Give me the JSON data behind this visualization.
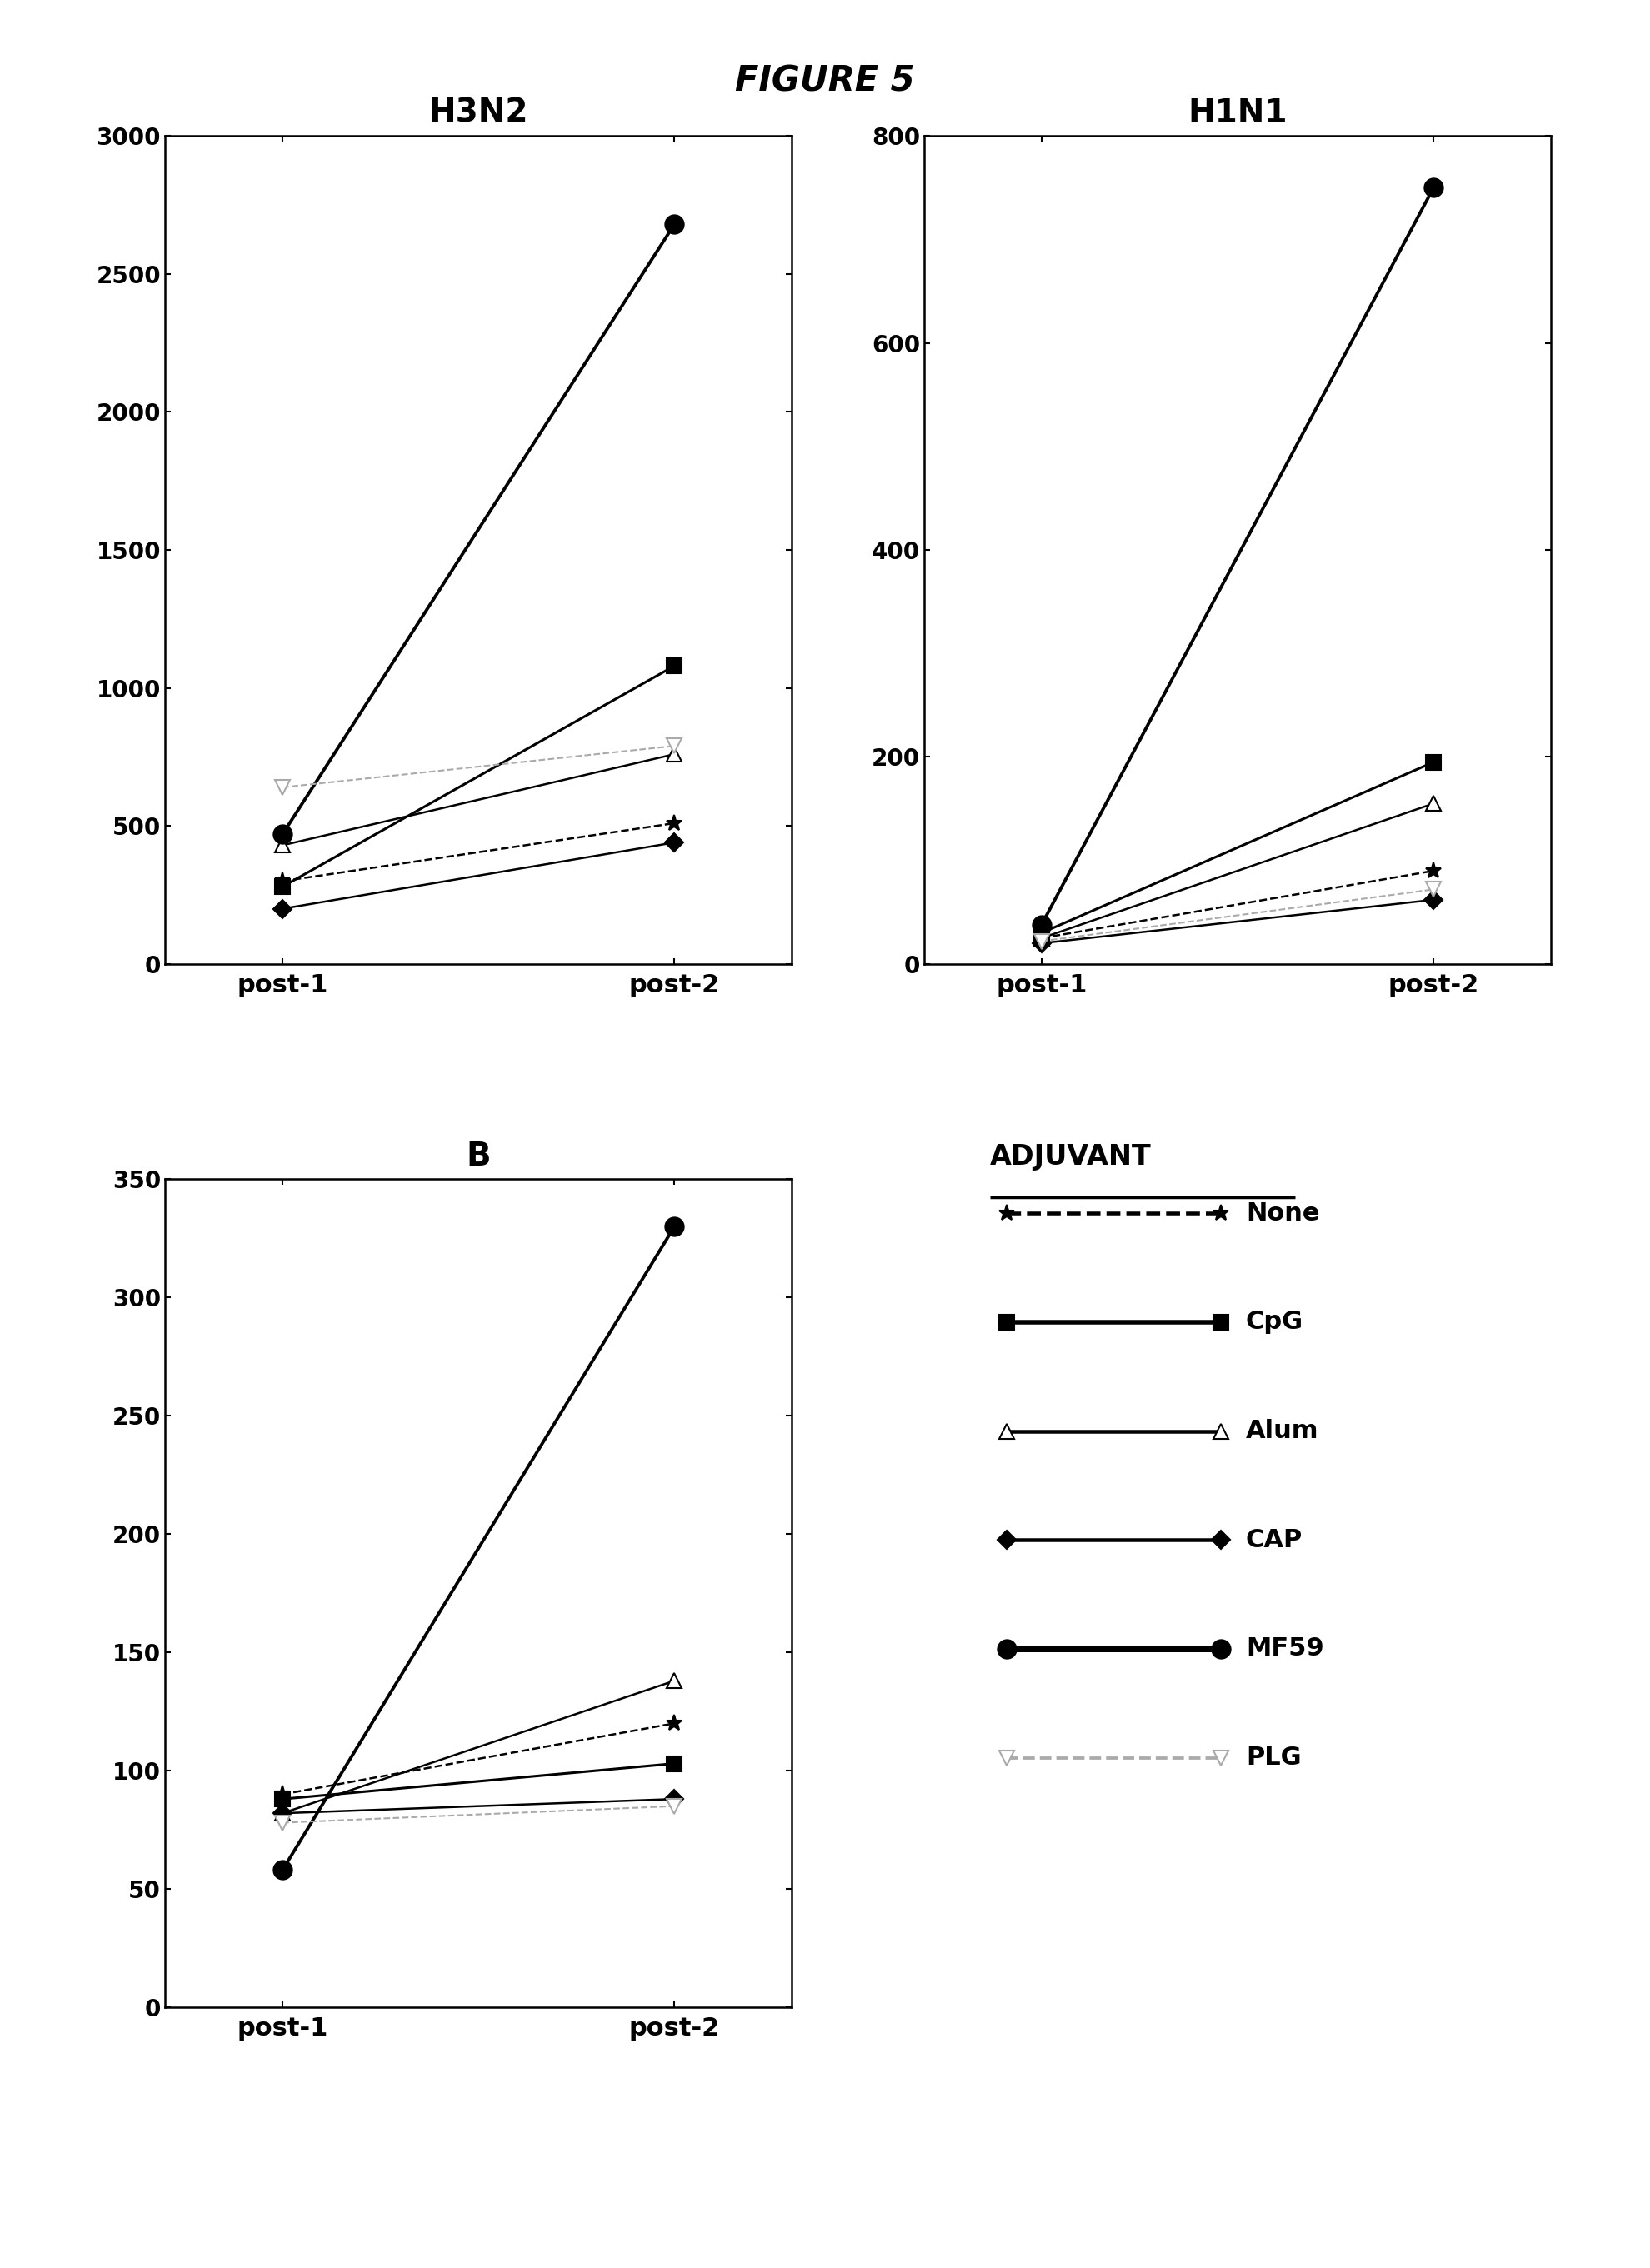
{
  "figure_title": "FIGURE 5",
  "plots": [
    {
      "title": "H3N2",
      "x_labels": [
        "post-1",
        "post-2"
      ],
      "ylim": [
        0,
        3000
      ],
      "yticks": [
        0,
        500,
        1000,
        1500,
        2000,
        2500,
        3000
      ],
      "series": [
        {
          "label": "None",
          "values": [
            300,
            510
          ],
          "color": "#000000",
          "linestyle": "--",
          "marker": "*",
          "linewidth": 1.8,
          "markersize": 14,
          "mfc": "#000000",
          "mec": "#000000"
        },
        {
          "label": "CpG",
          "values": [
            280,
            1080
          ],
          "color": "#000000",
          "linestyle": "-",
          "marker": "s",
          "linewidth": 2.2,
          "markersize": 13,
          "mfc": "#000000",
          "mec": "#000000"
        },
        {
          "label": "Alum",
          "values": [
            430,
            760
          ],
          "color": "#000000",
          "linestyle": "-",
          "marker": "^",
          "linewidth": 1.8,
          "markersize": 13,
          "mfc": "#ffffff",
          "mec": "#000000"
        },
        {
          "label": "CAP",
          "values": [
            200,
            440
          ],
          "color": "#000000",
          "linestyle": "-",
          "marker": "D",
          "linewidth": 1.8,
          "markersize": 11,
          "mfc": "#000000",
          "mec": "#000000"
        },
        {
          "label": "MF59",
          "values": [
            470,
            2680
          ],
          "color": "#000000",
          "linestyle": "-",
          "marker": "o",
          "linewidth": 2.8,
          "markersize": 16,
          "mfc": "#000000",
          "mec": "#000000"
        },
        {
          "label": "PLG",
          "values": [
            640,
            790
          ],
          "color": "#aaaaaa",
          "linestyle": "--",
          "marker": "v",
          "linewidth": 1.5,
          "markersize": 13,
          "mfc": "#ffffff",
          "mec": "#aaaaaa"
        }
      ]
    },
    {
      "title": "H1N1",
      "x_labels": [
        "post-1",
        "post-2"
      ],
      "ylim": [
        0,
        800
      ],
      "yticks": [
        0,
        200,
        400,
        600,
        800
      ],
      "series": [
        {
          "label": "None",
          "values": [
            25,
            90
          ],
          "color": "#000000",
          "linestyle": "--",
          "marker": "*",
          "linewidth": 1.8,
          "markersize": 14,
          "mfc": "#000000",
          "mec": "#000000"
        },
        {
          "label": "CpG",
          "values": [
            30,
            195
          ],
          "color": "#000000",
          "linestyle": "-",
          "marker": "s",
          "linewidth": 2.2,
          "markersize": 13,
          "mfc": "#000000",
          "mec": "#000000"
        },
        {
          "label": "Alum",
          "values": [
            25,
            155
          ],
          "color": "#000000",
          "linestyle": "-",
          "marker": "^",
          "linewidth": 1.8,
          "markersize": 13,
          "mfc": "#ffffff",
          "mec": "#000000"
        },
        {
          "label": "CAP",
          "values": [
            20,
            62
          ],
          "color": "#000000",
          "linestyle": "-",
          "marker": "D",
          "linewidth": 1.8,
          "markersize": 11,
          "mfc": "#000000",
          "mec": "#000000"
        },
        {
          "label": "MF59",
          "values": [
            38,
            750
          ],
          "color": "#000000",
          "linestyle": "-",
          "marker": "o",
          "linewidth": 2.8,
          "markersize": 16,
          "mfc": "#000000",
          "mec": "#000000"
        },
        {
          "label": "PLG",
          "values": [
            22,
            72
          ],
          "color": "#aaaaaa",
          "linestyle": "--",
          "marker": "v",
          "linewidth": 1.5,
          "markersize": 13,
          "mfc": "#ffffff",
          "mec": "#aaaaaa"
        }
      ]
    },
    {
      "title": "B",
      "x_labels": [
        "post-1",
        "post-2"
      ],
      "ylim": [
        0,
        350
      ],
      "yticks": [
        0,
        50,
        100,
        150,
        200,
        250,
        300,
        350
      ],
      "series": [
        {
          "label": "None",
          "values": [
            90,
            120
          ],
          "color": "#000000",
          "linestyle": "--",
          "marker": "*",
          "linewidth": 1.8,
          "markersize": 14,
          "mfc": "#000000",
          "mec": "#000000"
        },
        {
          "label": "CpG",
          "values": [
            88,
            103
          ],
          "color": "#000000",
          "linestyle": "-",
          "marker": "s",
          "linewidth": 2.2,
          "markersize": 13,
          "mfc": "#000000",
          "mec": "#000000"
        },
        {
          "label": "Alum",
          "values": [
            82,
            138
          ],
          "color": "#000000",
          "linestyle": "-",
          "marker": "^",
          "linewidth": 1.8,
          "markersize": 13,
          "mfc": "#ffffff",
          "mec": "#000000"
        },
        {
          "label": "CAP",
          "values": [
            82,
            88
          ],
          "color": "#000000",
          "linestyle": "-",
          "marker": "D",
          "linewidth": 1.8,
          "markersize": 11,
          "mfc": "#000000",
          "mec": "#000000"
        },
        {
          "label": "MF59",
          "values": [
            58,
            330
          ],
          "color": "#000000",
          "linestyle": "-",
          "marker": "o",
          "linewidth": 2.8,
          "markersize": 16,
          "mfc": "#000000",
          "mec": "#000000"
        },
        {
          "label": "PLG",
          "values": [
            78,
            85
          ],
          "color": "#aaaaaa",
          "linestyle": "--",
          "marker": "v",
          "linewidth": 1.5,
          "markersize": 13,
          "mfc": "#ffffff",
          "mec": "#aaaaaa"
        }
      ]
    }
  ],
  "legend_title": "ADJUVANT",
  "legend_entries": [
    {
      "label": "None",
      "color": "#000000",
      "linestyle": "--",
      "marker": "*",
      "linewidth": 1.8,
      "markersize": 14,
      "mfc": "#000000",
      "mec": "#000000"
    },
    {
      "label": "CpG",
      "color": "#000000",
      "linestyle": "-",
      "marker": "s",
      "linewidth": 2.2,
      "markersize": 13,
      "mfc": "#000000",
      "mec": "#000000"
    },
    {
      "label": "Alum",
      "color": "#000000",
      "linestyle": "-",
      "marker": "^",
      "linewidth": 1.8,
      "markersize": 13,
      "mfc": "#ffffff",
      "mec": "#000000"
    },
    {
      "label": "CAP",
      "color": "#000000",
      "linestyle": "-",
      "marker": "D",
      "linewidth": 1.8,
      "markersize": 11,
      "mfc": "#000000",
      "mec": "#000000"
    },
    {
      "label": "MF59",
      "color": "#000000",
      "linestyle": "-",
      "marker": "o",
      "linewidth": 2.8,
      "markersize": 16,
      "mfc": "#000000",
      "mec": "#000000"
    },
    {
      "label": "PLG",
      "color": "#aaaaaa",
      "linestyle": "--",
      "marker": "v",
      "linewidth": 1.5,
      "markersize": 13,
      "mfc": "#ffffff",
      "mec": "#aaaaaa"
    }
  ]
}
